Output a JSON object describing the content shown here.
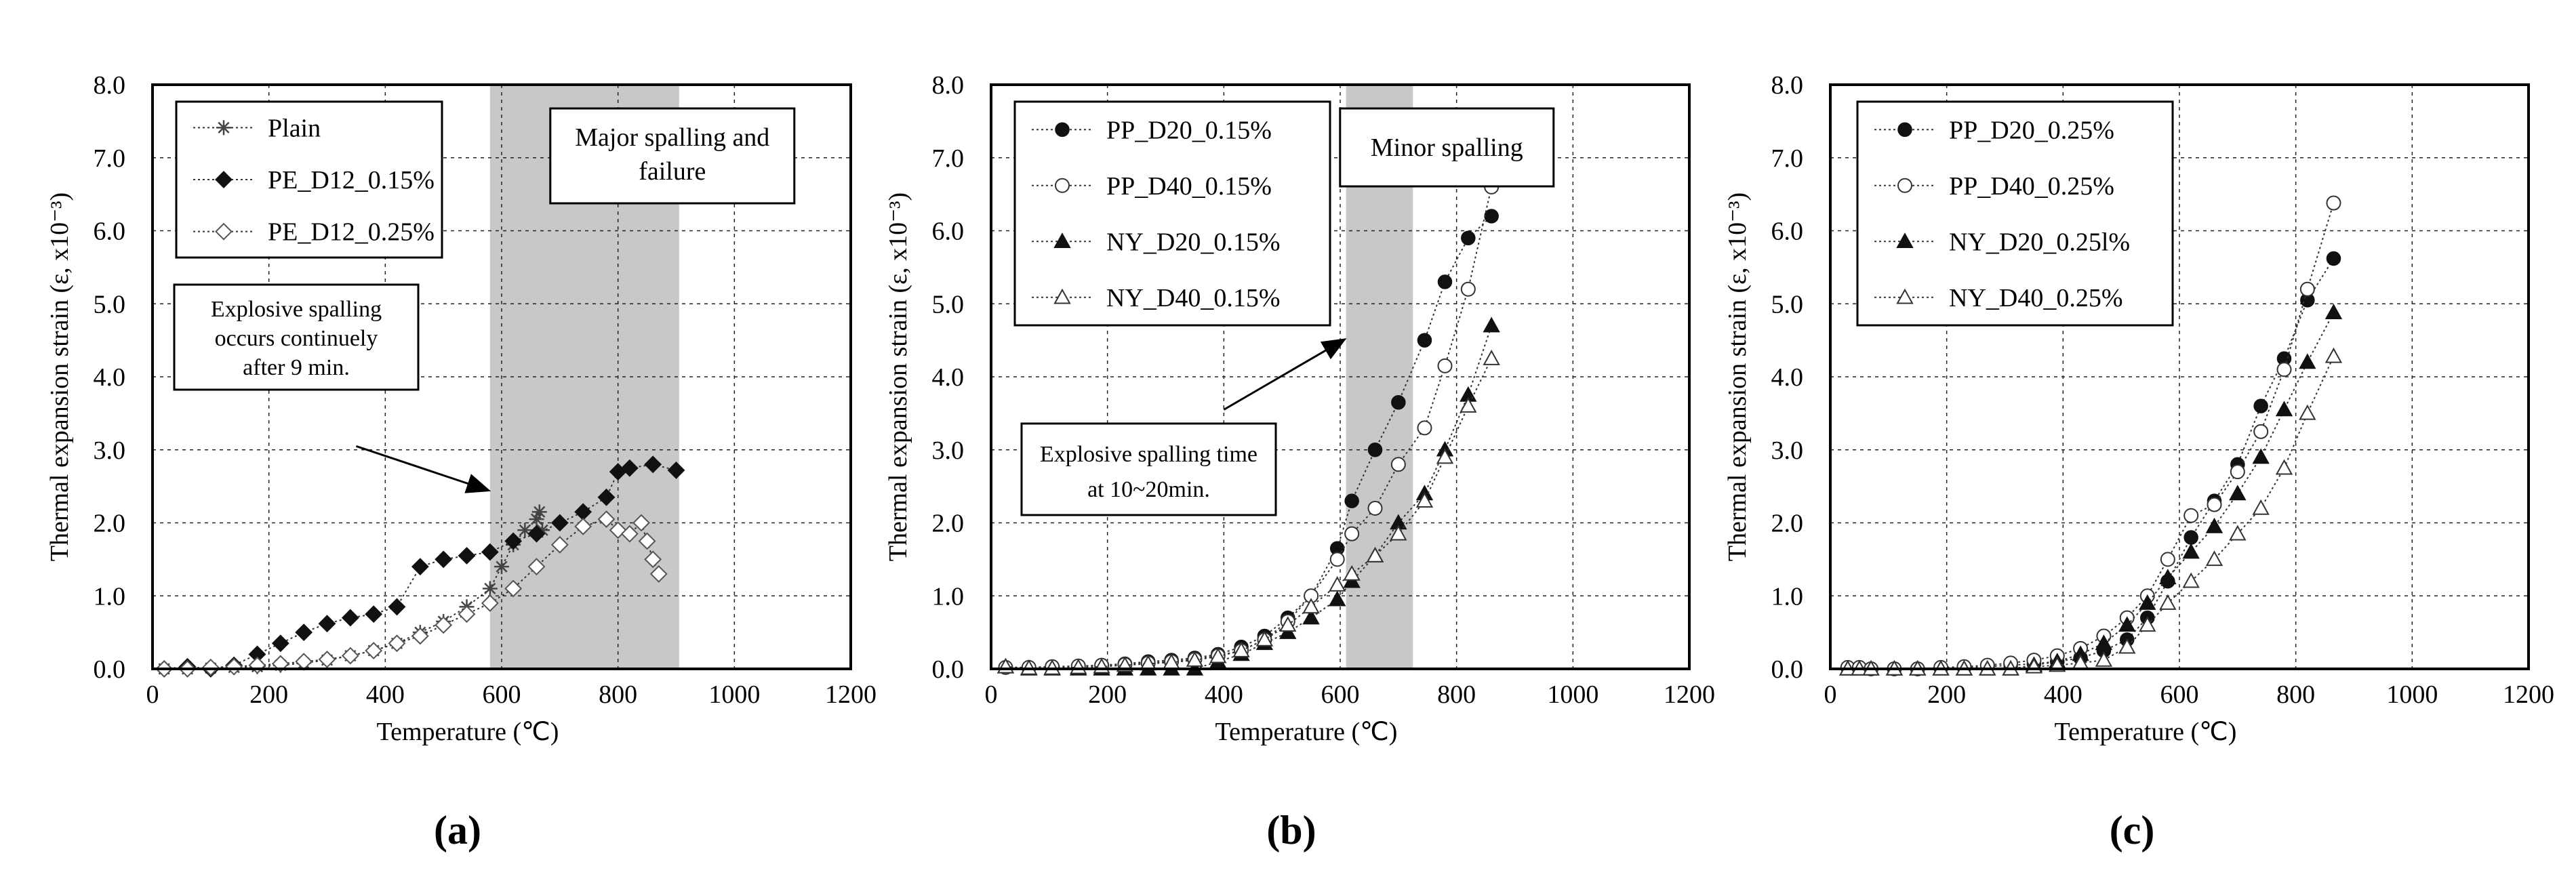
{
  "chart_data": [
    {
      "panel_label": "(a)",
      "type": "scatter",
      "xlabel": "Temperature (℃)",
      "ylabel": "Thermal expansion strain (ε, x10⁻³)",
      "xlim": [
        0,
        1200
      ],
      "ylim": [
        0,
        8
      ],
      "xticks": [
        "0",
        "200",
        "400",
        "600",
        "800",
        "1000",
        "1200"
      ],
      "yticks": [
        "0.0",
        "1.0",
        "2.0",
        "3.0",
        "4.0",
        "5.0",
        "6.0",
        "7.0",
        "8.0"
      ],
      "grid": true,
      "legend_position": "top-left",
      "shaded_region": {
        "x": [
          580,
          905
        ],
        "label": "Major spalling and failure"
      },
      "annotation": {
        "text": [
          "Explosive spalling",
          "occurs continuely",
          "after 9 min."
        ],
        "arrow_from": [
          350,
          3.05
        ],
        "arrow_to": [
          575,
          2.45
        ]
      },
      "series": [
        {
          "name": "Plain",
          "marker": "star",
          "x": [
            20,
            60,
            100,
            140,
            180,
            220,
            260,
            300,
            340,
            380,
            420,
            460,
            500,
            540,
            580,
            600,
            620,
            640,
            660,
            665,
            670
          ],
          "y": [
            0.0,
            0.0,
            0.01,
            0.02,
            0.03,
            0.05,
            0.08,
            0.12,
            0.18,
            0.25,
            0.35,
            0.5,
            0.65,
            0.85,
            1.1,
            1.4,
            1.7,
            1.9,
            2.05,
            2.15,
            1.9
          ]
        },
        {
          "name": "PE_D12_0.15%",
          "marker": "filled-diamond",
          "x": [
            20,
            60,
            100,
            140,
            180,
            220,
            260,
            300,
            340,
            380,
            420,
            460,
            500,
            540,
            580,
            620,
            660,
            700,
            740,
            780,
            800,
            820,
            860,
            900
          ],
          "y": [
            0.0,
            0.03,
            0.0,
            0.05,
            0.2,
            0.35,
            0.5,
            0.62,
            0.7,
            0.75,
            0.85,
            1.4,
            1.5,
            1.55,
            1.6,
            1.75,
            1.85,
            2.0,
            2.15,
            2.35,
            2.7,
            2.75,
            2.8,
            2.72
          ]
        },
        {
          "name": "PE_D12_0.25%",
          "marker": "open-diamond",
          "x": [
            20,
            60,
            100,
            140,
            180,
            220,
            260,
            300,
            340,
            380,
            420,
            460,
            500,
            540,
            580,
            620,
            660,
            700,
            740,
            780,
            800,
            820,
            840,
            850,
            860,
            870
          ],
          "y": [
            0.0,
            0.0,
            0.02,
            0.03,
            0.05,
            0.07,
            0.1,
            0.13,
            0.18,
            0.25,
            0.35,
            0.45,
            0.6,
            0.75,
            0.9,
            1.1,
            1.4,
            1.7,
            1.95,
            2.05,
            1.9,
            1.85,
            2.0,
            1.75,
            1.5,
            1.3
          ]
        }
      ]
    },
    {
      "panel_label": "(b)",
      "type": "scatter",
      "xlabel": "Temperature (℃)",
      "ylabel": "Thermal expansion strain (ε, x10⁻³)",
      "xlim": [
        0,
        1200
      ],
      "ylim": [
        0,
        8
      ],
      "xticks": [
        "0",
        "200",
        "400",
        "600",
        "800",
        "1000",
        "1200"
      ],
      "yticks": [
        "0.0",
        "1.0",
        "2.0",
        "3.0",
        "4.0",
        "5.0",
        "6.0",
        "7.0",
        "8.0"
      ],
      "grid": true,
      "legend_position": "top-left",
      "shaded_region": {
        "x": [
          610,
          725
        ],
        "label": "Minor spalling"
      },
      "annotation": {
        "text": [
          "Explosive spalling time",
          "at 10~20min."
        ],
        "arrow_from": [
          400,
          3.55
        ],
        "arrow_to": [
          605,
          4.5
        ]
      },
      "series": [
        {
          "name": "PP_D20_0.15%",
          "marker": "filled-circle",
          "x": [
            25,
            65,
            105,
            150,
            190,
            230,
            270,
            310,
            350,
            390,
            430,
            470,
            510,
            550,
            595,
            620,
            660,
            700,
            745,
            780,
            820,
            860
          ],
          "y": [
            0.02,
            0.02,
            0.03,
            0.03,
            0.05,
            0.07,
            0.1,
            0.12,
            0.15,
            0.2,
            0.3,
            0.45,
            0.7,
            1.0,
            1.65,
            2.3,
            3.0,
            3.65,
            4.5,
            5.3,
            5.9,
            6.2
          ]
        },
        {
          "name": "PP_D40_0.15%",
          "marker": "open-circle",
          "x": [
            25,
            65,
            105,
            150,
            190,
            230,
            270,
            310,
            350,
            390,
            430,
            470,
            510,
            550,
            595,
            620,
            660,
            700,
            745,
            780,
            820,
            860
          ],
          "y": [
            0.02,
            0.02,
            0.03,
            0.04,
            0.05,
            0.06,
            0.08,
            0.1,
            0.13,
            0.18,
            0.25,
            0.4,
            0.65,
            1.0,
            1.5,
            1.85,
            2.2,
            2.8,
            3.3,
            4.15,
            5.2,
            6.6
          ]
        },
        {
          "name": "NY_D20_0.15%",
          "marker": "filled-triangle",
          "x": [
            25,
            65,
            105,
            150,
            190,
            230,
            270,
            310,
            350,
            390,
            430,
            470,
            510,
            550,
            595,
            620,
            660,
            700,
            745,
            780,
            820,
            860
          ],
          "y": [
            0.03,
            0.0,
            0.0,
            0.0,
            0.0,
            0.0,
            0.0,
            0.0,
            0.0,
            0.1,
            0.2,
            0.35,
            0.5,
            0.7,
            0.95,
            1.2,
            1.55,
            2.0,
            2.4,
            3.0,
            3.75,
            4.7
          ]
        },
        {
          "name": "NY_D40_0.15%",
          "marker": "open-triangle",
          "x": [
            25,
            65,
            105,
            150,
            190,
            230,
            270,
            310,
            350,
            390,
            430,
            470,
            510,
            550,
            595,
            620,
            660,
            700,
            745,
            780,
            820,
            860
          ],
          "y": [
            0.03,
            0.01,
            0.01,
            0.02,
            0.03,
            0.05,
            0.07,
            0.09,
            0.12,
            0.17,
            0.25,
            0.4,
            0.6,
            0.85,
            1.15,
            1.3,
            1.55,
            1.85,
            2.3,
            2.9,
            3.6,
            4.25
          ]
        }
      ]
    },
    {
      "panel_label": "(c)",
      "type": "scatter",
      "xlabel": "Temperature (℃)",
      "ylabel": "Thermal expansion strain (ε, x10⁻³)",
      "xlim": [
        0,
        1200
      ],
      "ylim": [
        0,
        8
      ],
      "xticks": [
        "0",
        "200",
        "400",
        "600",
        "800",
        "1000",
        "1200"
      ],
      "yticks": [
        "0.0",
        "1.0",
        "2.0",
        "3.0",
        "4.0",
        "5.0",
        "6.0",
        "7.0",
        "8.0"
      ],
      "grid": true,
      "legend_position": "top-left",
      "series": [
        {
          "name": "PP_D20_0.25%",
          "marker": "filled-circle",
          "x": [
            30,
            50,
            70,
            110,
            150,
            190,
            230,
            270,
            310,
            350,
            390,
            430,
            470,
            510,
            545,
            580,
            620,
            660,
            700,
            740,
            780,
            820,
            865
          ],
          "y": [
            0.02,
            0.02,
            0.0,
            0.0,
            0.0,
            0.01,
            0.02,
            0.03,
            0.05,
            0.07,
            0.1,
            0.15,
            0.25,
            0.4,
            0.7,
            1.2,
            1.8,
            2.3,
            2.8,
            3.6,
            4.25,
            5.05,
            5.62
          ]
        },
        {
          "name": "PP_D40_0.25%",
          "marker": "open-circle",
          "x": [
            30,
            50,
            70,
            110,
            150,
            190,
            230,
            270,
            310,
            350,
            390,
            430,
            470,
            510,
            545,
            580,
            620,
            660,
            700,
            740,
            780,
            820,
            865
          ],
          "y": [
            0.02,
            0.02,
            0.0,
            0.0,
            0.0,
            0.02,
            0.03,
            0.05,
            0.08,
            0.12,
            0.18,
            0.28,
            0.45,
            0.7,
            1.0,
            1.5,
            2.1,
            2.25,
            2.7,
            3.25,
            4.1,
            5.2,
            6.38
          ]
        },
        {
          "name": "NY_D20_0.25l%",
          "marker": "filled-triangle",
          "x": [
            30,
            50,
            70,
            110,
            150,
            190,
            230,
            270,
            310,
            350,
            390,
            430,
            470,
            510,
            545,
            580,
            620,
            660,
            700,
            740,
            780,
            820,
            865
          ],
          "y": [
            0.0,
            0.0,
            0.0,
            0.0,
            0.0,
            0.0,
            0.0,
            0.0,
            0.0,
            0.05,
            0.1,
            0.2,
            0.35,
            0.6,
            0.9,
            1.25,
            1.6,
            1.95,
            2.4,
            2.9,
            3.55,
            4.2,
            4.88
          ]
        },
        {
          "name": "NY_D40_0.25%",
          "marker": "open-triangle",
          "x": [
            30,
            50,
            70,
            110,
            150,
            190,
            230,
            270,
            310,
            350,
            390,
            430,
            470,
            510,
            545,
            580,
            620,
            660,
            700,
            740,
            780,
            820,
            865
          ],
          "y": [
            0.0,
            0.0,
            0.0,
            0.0,
            0.0,
            0.0,
            0.0,
            0.0,
            0.0,
            0.03,
            0.05,
            0.08,
            0.12,
            0.3,
            0.6,
            0.9,
            1.2,
            1.5,
            1.85,
            2.2,
            2.75,
            3.5,
            4.28
          ]
        }
      ]
    }
  ]
}
